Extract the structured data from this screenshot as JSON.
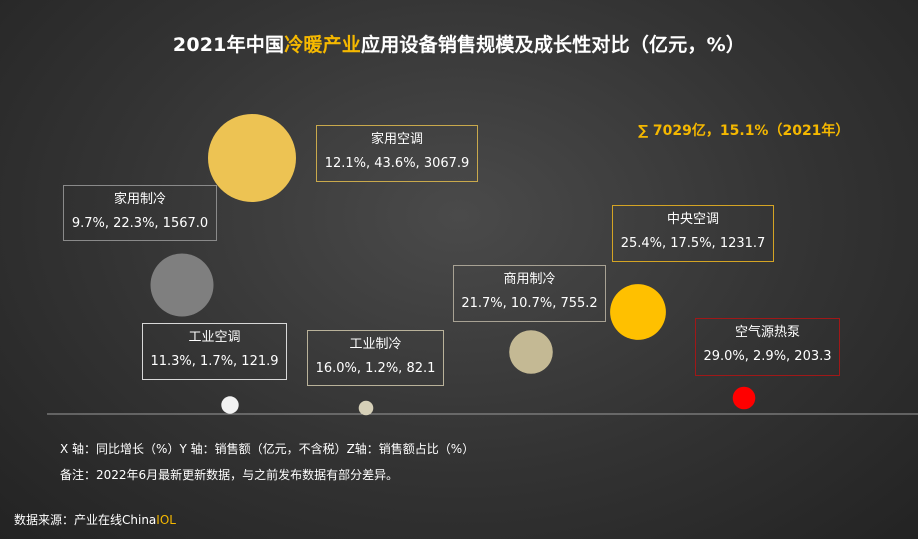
{
  "title": {
    "prefix": "2021年中国",
    "highlight": "冷暖产业",
    "suffix": "应用设备销售规模及成长性对比（亿元，%）"
  },
  "summary": "∑ 7029亿，15.1%（2021年）",
  "colors": {
    "accent": "#f5b800",
    "axis": "#9a9a9a"
  },
  "chart_data": {
    "type": "scatter",
    "title": "2021年中国冷暖产业应用设备销售规模及成长性对比（亿元，%）",
    "xlabel": "同比增长（%）",
    "ylabel": "销售额（亿元，不含税）",
    "zlabel": "销售额占比（%）",
    "series": [
      {
        "name": "家用空调",
        "x": 12.1,
        "y": 3067.9,
        "z": 43.6,
        "label": "12.1%, 43.6%, 3067.9",
        "color": "#edc353",
        "border": "#c9a94c"
      },
      {
        "name": "家用制冷",
        "x": 9.7,
        "y": 1567.0,
        "z": 22.3,
        "label": "9.7%, 22.3%, 1567.0",
        "color": "#7f7f7f",
        "border": "#8a8a8a"
      },
      {
        "name": "工业空调",
        "x": 11.3,
        "y": 121.9,
        "z": 1.7,
        "label": "11.3%, 1.7%, 121.9",
        "color": "#f2f2f2",
        "border": "#d8d8d8"
      },
      {
        "name": "工业制冷",
        "x": 16.0,
        "y": 82.1,
        "z": 1.2,
        "label": "16.0%, 1.2%, 82.1",
        "color": "#d6d0b8",
        "border": "#b9b29a"
      },
      {
        "name": "商用制冷",
        "x": 21.7,
        "y": 755.2,
        "z": 10.7,
        "label": "21.7%, 10.7%, 755.2",
        "color": "#c4b994",
        "border": "#a8a294"
      },
      {
        "name": "中央空调",
        "x": 25.4,
        "y": 1231.7,
        "z": 17.5,
        "label": "25.4%, 17.5%, 1231.7",
        "color": "#ffc000",
        "border": "#d4a424"
      },
      {
        "name": "空气源热泵",
        "x": 29.0,
        "y": 203.3,
        "z": 2.9,
        "label": "29.0%, 2.9%, 203.3",
        "color": "#ff0000",
        "border": "#a01818"
      }
    ]
  },
  "footnotes": {
    "axes": "X 轴：同比增长（%）Y 轴：销售额（亿元，不含税）Z轴：销售额占比（%）",
    "remark": "备注：2022年6月最新更新数据，与之前发布数据有部分差异。"
  },
  "source": {
    "prefix": "数据来源：产业在线China",
    "brand": "IOL"
  }
}
